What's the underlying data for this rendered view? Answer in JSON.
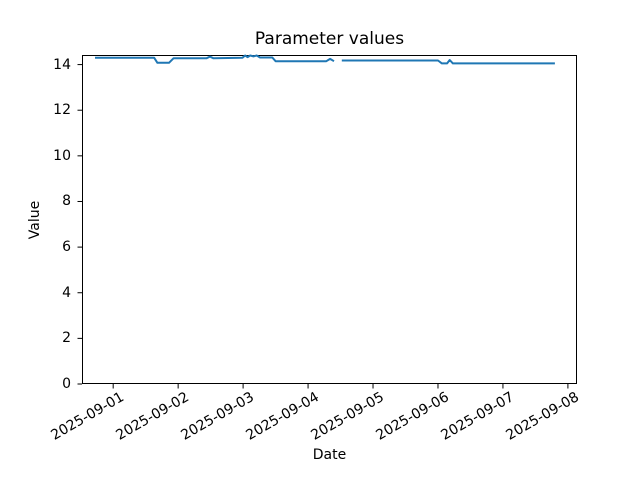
{
  "figure": {
    "kind": "matplotlib-line-chart"
  },
  "chart_data": {
    "type": "line",
    "title": "Parameter values",
    "xlabel": "Date",
    "ylabel": "Value",
    "grid": false,
    "legend": "none",
    "x_unit": "days since 2025-09-01 00:00",
    "xlim": [
      -0.48,
      7.14
    ],
    "ylim": [
      0,
      14.42
    ],
    "y_ticks": [
      0,
      2,
      4,
      6,
      8,
      10,
      12,
      14
    ],
    "x_ticks": [
      {
        "pos": 0,
        "label": "2025-09-01"
      },
      {
        "pos": 1,
        "label": "2025-09-02"
      },
      {
        "pos": 2,
        "label": "2025-09-03"
      },
      {
        "pos": 3,
        "label": "2025-09-04"
      },
      {
        "pos": 4,
        "label": "2025-09-05"
      },
      {
        "pos": 5,
        "label": "2025-09-06"
      },
      {
        "pos": 6,
        "label": "2025-09-07"
      },
      {
        "pos": 7,
        "label": "2025-09-08"
      }
    ],
    "axis_color": "#000000",
    "text_color": "#000000",
    "series": [
      {
        "name": "Value",
        "color": "#1f77b4",
        "line_width": 2,
        "segments": [
          [
            [
              -0.28,
              14.3
            ],
            [
              0.63,
              14.3
            ],
            [
              0.68,
              14.08
            ],
            [
              0.86,
              14.08
            ],
            [
              0.93,
              14.28
            ],
            [
              1.44,
              14.28
            ],
            [
              1.49,
              14.35
            ],
            [
              1.54,
              14.28
            ],
            [
              1.99,
              14.3
            ],
            [
              2.03,
              14.4
            ],
            [
              2.07,
              14.33
            ],
            [
              2.11,
              14.4
            ],
            [
              2.16,
              14.36
            ],
            [
              2.21,
              14.4
            ],
            [
              2.26,
              14.31
            ],
            [
              2.45,
              14.31
            ],
            [
              2.5,
              14.15
            ],
            [
              3.28,
              14.15
            ],
            [
              3.34,
              14.25
            ],
            [
              3.4,
              14.15
            ]
          ],
          [
            [
              3.52,
              14.18
            ],
            [
              5.0,
              14.18
            ],
            [
              5.06,
              14.05
            ],
            [
              5.14,
              14.05
            ],
            [
              5.18,
              14.2
            ],
            [
              5.23,
              14.05
            ],
            [
              6.8,
              14.05
            ]
          ]
        ]
      }
    ]
  }
}
